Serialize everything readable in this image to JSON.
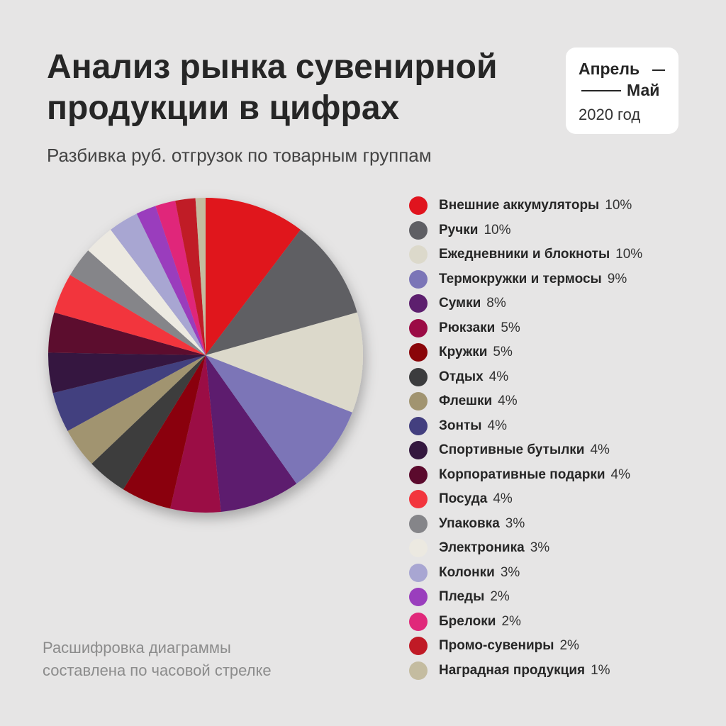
{
  "header": {
    "title_line1": "Анализ рынка сувенирной",
    "title_line2": "продукции в цифрах",
    "subtitle": "Разбивка руб. отгрузок по товарным группам"
  },
  "date_card": {
    "line1": "Апрель",
    "line2": "Май",
    "line3": "2020 год"
  },
  "footnote": {
    "line1": "Расшифровка диаграммы",
    "line2": "составлена по часовой стрелке"
  },
  "chart_data": {
    "type": "pie",
    "title": "Разбивка руб. отгрузок по товарным группам",
    "direction": "clockwise",
    "legend_position": "right",
    "slices": [
      {
        "label": "Внешние аккумуляторы",
        "value": 10,
        "value_label": "10%",
        "color": "#e0141e"
      },
      {
        "label": "Ручки",
        "value": 10,
        "value_label": "10%",
        "color": "#5f5f64"
      },
      {
        "label": "Ежедневники и блокноты",
        "value": 10,
        "value_label": "10%",
        "color": "#dcd9cb"
      },
      {
        "label": "Термокружки и термосы",
        "value": 9,
        "value_label": "9%",
        "color": "#7b75b7"
      },
      {
        "label": "Сумки",
        "value": 8,
        "value_label": "8%",
        "color": "#5d1f6e"
      },
      {
        "label": "Рюкзаки",
        "value": 5,
        "value_label": "5%",
        "color": "#9b0b45"
      },
      {
        "label": "Кружки",
        "value": 5,
        "value_label": "5%",
        "color": "#8a0509"
      },
      {
        "label": "Отдых",
        "value": 4,
        "value_label": "4%",
        "color": "#3c3c3e"
      },
      {
        "label": "Флешки",
        "value": 4,
        "value_label": "4%",
        "color": "#a19470"
      },
      {
        "label": "Зонты",
        "value": 4,
        "value_label": "4%",
        "color": "#433f7f"
      },
      {
        "label": "Спортивные бутылки",
        "value": 4,
        "value_label": "4%",
        "color": "#34183f"
      },
      {
        "label": "Корпоративные подарки",
        "value": 4,
        "value_label": "4%",
        "color": "#5b0a2d"
      },
      {
        "label": "Посуда",
        "value": 4,
        "value_label": "4%",
        "color": "#f2353d"
      },
      {
        "label": "Упаковка",
        "value": 3,
        "value_label": "3%",
        "color": "#858589"
      },
      {
        "label": "Электроника",
        "value": 3,
        "value_label": "3%",
        "color": "#ece9e1"
      },
      {
        "label": "Колонки",
        "value": 3,
        "value_label": "3%",
        "color": "#a8a6d2"
      },
      {
        "label": "Пледы",
        "value": 2,
        "value_label": "2%",
        "color": "#9a3ebd"
      },
      {
        "label": "Брелоки",
        "value": 2,
        "value_label": "2%",
        "color": "#e0287a"
      },
      {
        "label": "Промо-сувениры",
        "value": 2,
        "value_label": "2%",
        "color": "#c01a26"
      },
      {
        "label": "Наградная продукция",
        "value": 1,
        "value_label": "1%",
        "color": "#c4bca0"
      }
    ]
  }
}
